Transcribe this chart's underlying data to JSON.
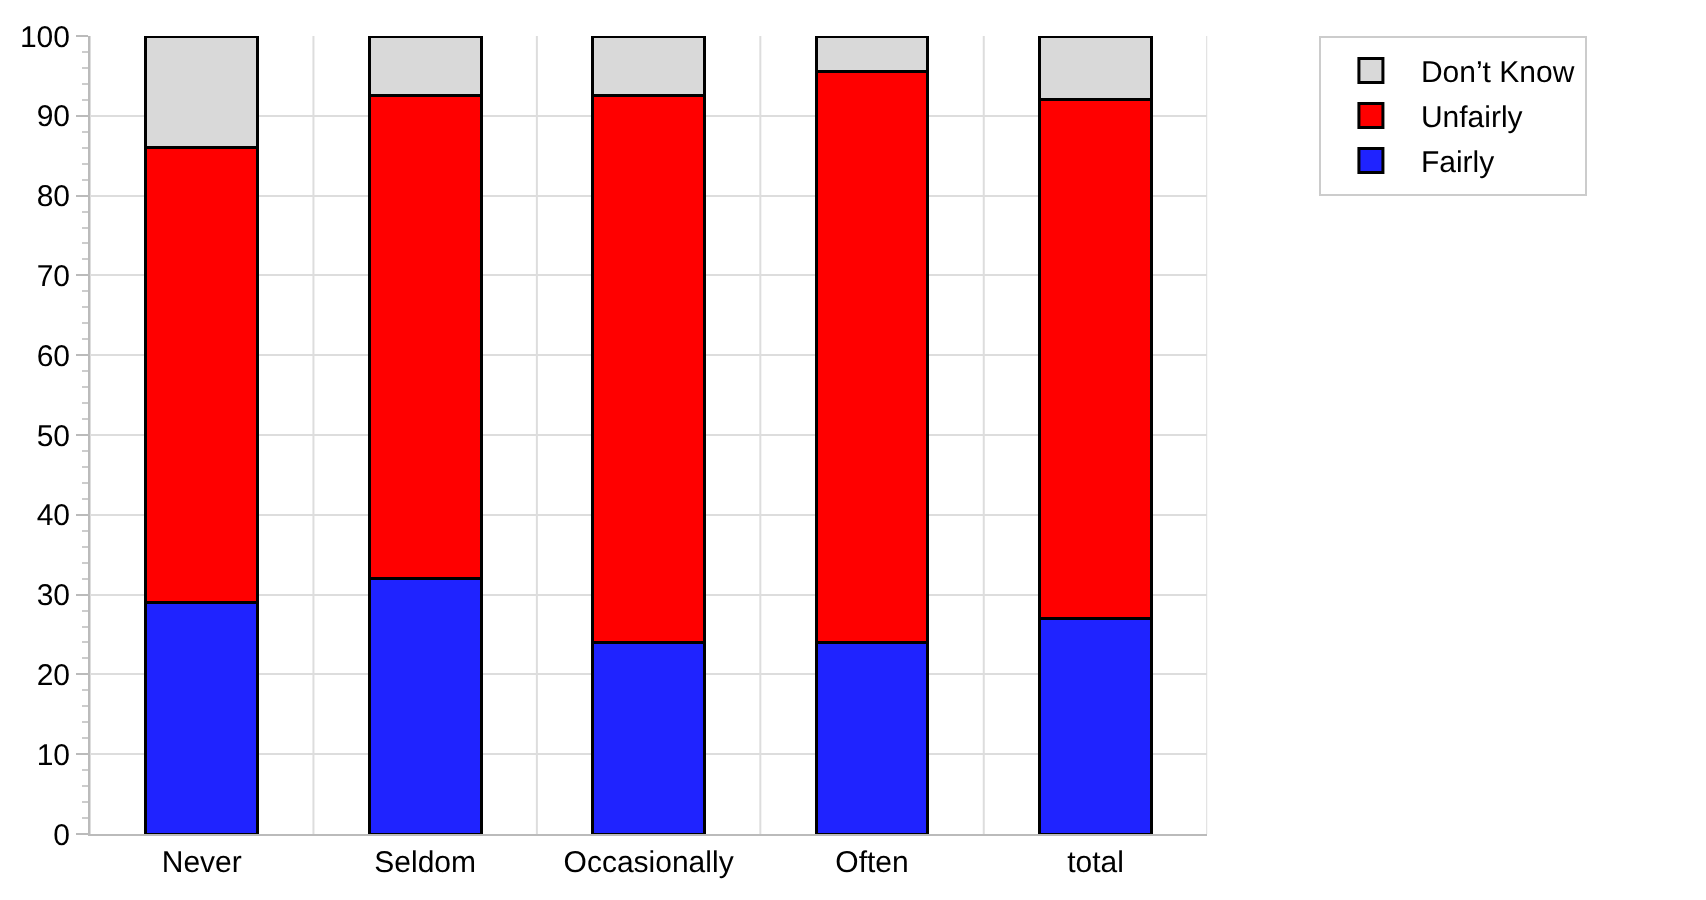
{
  "chart_data": {
    "type": "bar",
    "stacked": true,
    "categories": [
      "Never",
      "Seldom",
      "Occasionally",
      "Often",
      "total"
    ],
    "series": [
      {
        "name": "Fairly",
        "color": "#1f23ff",
        "values": [
          29,
          32,
          24,
          24,
          27
        ]
      },
      {
        "name": "Unfairly",
        "color": "#ff0000",
        "values": [
          57,
          60.5,
          68.5,
          71.5,
          65
        ]
      },
      {
        "name": "Don’t Know",
        "color": "#d9d9d9",
        "values": [
          14,
          7.5,
          7.5,
          4.5,
          8
        ]
      }
    ],
    "ylim": [
      0,
      100
    ],
    "yticks": [
      0,
      10,
      20,
      30,
      40,
      50,
      60,
      70,
      80,
      90,
      100
    ],
    "grid": true,
    "legend": "top right"
  }
}
